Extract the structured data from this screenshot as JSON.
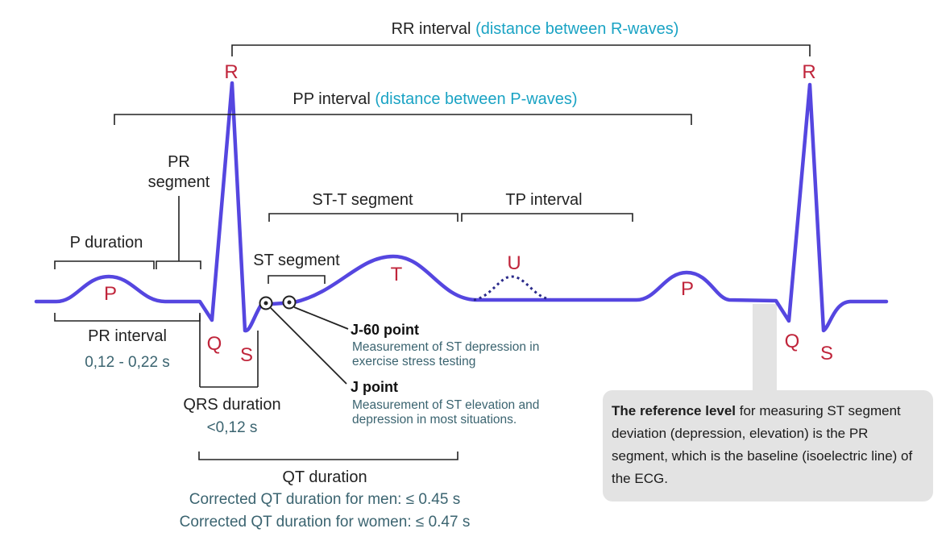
{
  "labels": {
    "rr_interval": "RR  interval",
    "rr_note": "(distance between R-waves)",
    "pp_interval": "PP interval",
    "pp_note": "(distance between P-waves)",
    "pr_segment_line1": "PR",
    "pr_segment_line2": "segment",
    "st_t_segment": "ST-T segment",
    "tp_interval": "TP interval",
    "p_duration": "P duration",
    "st_segment": "ST segment",
    "pr_interval": "PR interval",
    "pr_interval_range": "0,12 - 0,22 s",
    "qrs_duration": "QRS duration",
    "qrs_value": "<0,12 s",
    "qt_duration": "QT duration",
    "qt_men": "Corrected QT duration for men: ≤ 0.45 s",
    "qt_women": "Corrected QT duration for women: ≤ 0.47 s",
    "j60_title": "J-60 point",
    "j60_desc_line1": "Measurement of ST depression in",
    "j60_desc_line2": "exercise stress testing",
    "j_title": "J point",
    "j_desc_line1": "Measurement of ST elevation and",
    "j_desc_line2": "depression in most situations."
  },
  "waves": {
    "p1": "P",
    "q1": "Q",
    "r1": "R",
    "s1": "S",
    "t": "T",
    "u": "U",
    "p2": "P",
    "q2": "Q",
    "r2": "R",
    "s2": "S"
  },
  "reference_box": {
    "bold": "The reference level",
    "rest": " for measuring ST segment deviation (depression, elevation) is the PR segment, which is the baseline (isoelectric line) of the ECG."
  },
  "colors": {
    "trace": "#5546e0",
    "wave_label": "#c0253b",
    "note_cyan": "#1aa3c4",
    "note_teal": "#3b6470",
    "reference_box_bg": "#e3e3e3"
  }
}
